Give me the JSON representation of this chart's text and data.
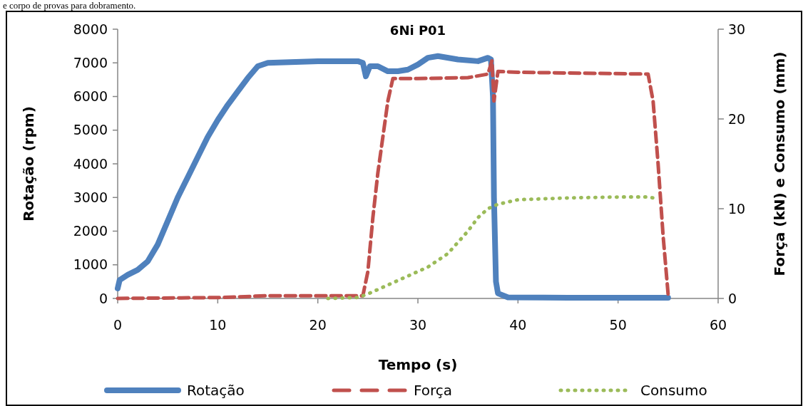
{
  "chart_data": {
    "type": "line",
    "title": "6Ni P01",
    "xlabel": "Tempo (s)",
    "ylabel": "Rotação (rpm)",
    "y2label": "Força (kN) e Consumo (mm)",
    "annotations": [
      "e corpo de provas para dobramento."
    ],
    "xlim": [
      0,
      60
    ],
    "xticks": [
      0,
      10,
      20,
      30,
      40,
      50,
      60
    ],
    "ylim": [
      0,
      8000
    ],
    "yticks": [
      0,
      1000,
      2000,
      3000,
      4000,
      5000,
      6000,
      7000,
      8000
    ],
    "y2lim": [
      0,
      30
    ],
    "y2ticks": [
      0,
      10,
      20,
      30
    ],
    "grid": false,
    "legend": "bottom",
    "series": [
      {
        "name": "Rotação",
        "color": "#4f81bd",
        "line_style": "solid",
        "x": [
          0,
          0.2,
          1,
          2,
          3,
          4,
          5,
          6,
          7,
          8,
          9,
          10,
          11,
          12,
          13,
          14,
          15,
          20,
          24,
          24.5,
          24.8,
          25.2,
          26,
          27,
          28,
          29,
          30,
          31,
          32,
          34,
          36,
          37,
          37.3,
          37.5,
          37.6,
          37.8,
          38,
          39,
          45,
          55
        ],
        "values": [
          300,
          550,
          700,
          850,
          1100,
          1600,
          2300,
          3000,
          3600,
          4200,
          4800,
          5300,
          5750,
          6150,
          6550,
          6900,
          7000,
          7050,
          7050,
          7000,
          6600,
          6900,
          6900,
          6750,
          6750,
          6800,
          6950,
          7150,
          7200,
          7100,
          7050,
          7150,
          7100,
          6000,
          3000,
          500,
          150,
          30,
          20,
          20
        ]
      },
      {
        "name": "Força",
        "color": "#c0504d",
        "line_style": "dashed",
        "axis": "y2",
        "x": [
          0,
          10,
          15,
          24.5,
          25,
          25.5,
          26,
          26.5,
          27,
          27.5,
          30,
          35,
          37,
          37.4,
          37.6,
          38,
          40,
          53,
          53.5,
          54,
          54.5,
          55
        ],
        "values": [
          0,
          0.1,
          0.3,
          0.3,
          3,
          9,
          14,
          18,
          22,
          24.5,
          24.5,
          24.6,
          25,
          26.5,
          22,
          25.3,
          25.2,
          25,
          22,
          15,
          7,
          0.5
        ]
      },
      {
        "name": "Consumo",
        "color": "#9bbb59",
        "line_style": "dotted",
        "axis": "y2",
        "x": [
          21,
          24,
          25,
          27,
          29,
          31,
          33,
          35,
          36,
          37,
          38,
          40,
          45,
          50,
          53,
          54
        ],
        "values": [
          0,
          0.1,
          0.5,
          1.5,
          2.5,
          3.5,
          5,
          7.5,
          9,
          10,
          10.5,
          11,
          11.2,
          11.3,
          11.3,
          11.1
        ]
      }
    ]
  }
}
